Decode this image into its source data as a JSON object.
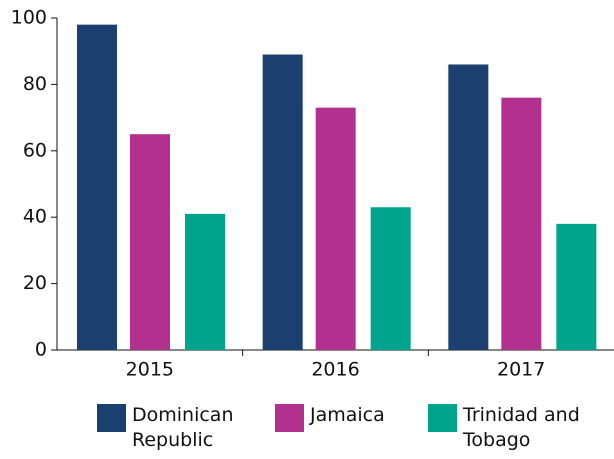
{
  "chart_data": {
    "type": "bar",
    "categories": [
      "2015",
      "2016",
      "2017"
    ],
    "series": [
      {
        "name": "Dominican Republic",
        "color": "#1b3f6e",
        "values": [
          98,
          89,
          86
        ]
      },
      {
        "name": "Jamaica",
        "color": "#b3318e",
        "values": [
          65,
          73,
          76
        ]
      },
      {
        "name": "Trinidad and Tobago",
        "color": "#00a48d",
        "values": [
          41,
          43,
          38
        ]
      }
    ],
    "ylim": [
      0,
      100
    ],
    "yticks": [
      0,
      20,
      40,
      60,
      80,
      100
    ],
    "grid": false
  }
}
